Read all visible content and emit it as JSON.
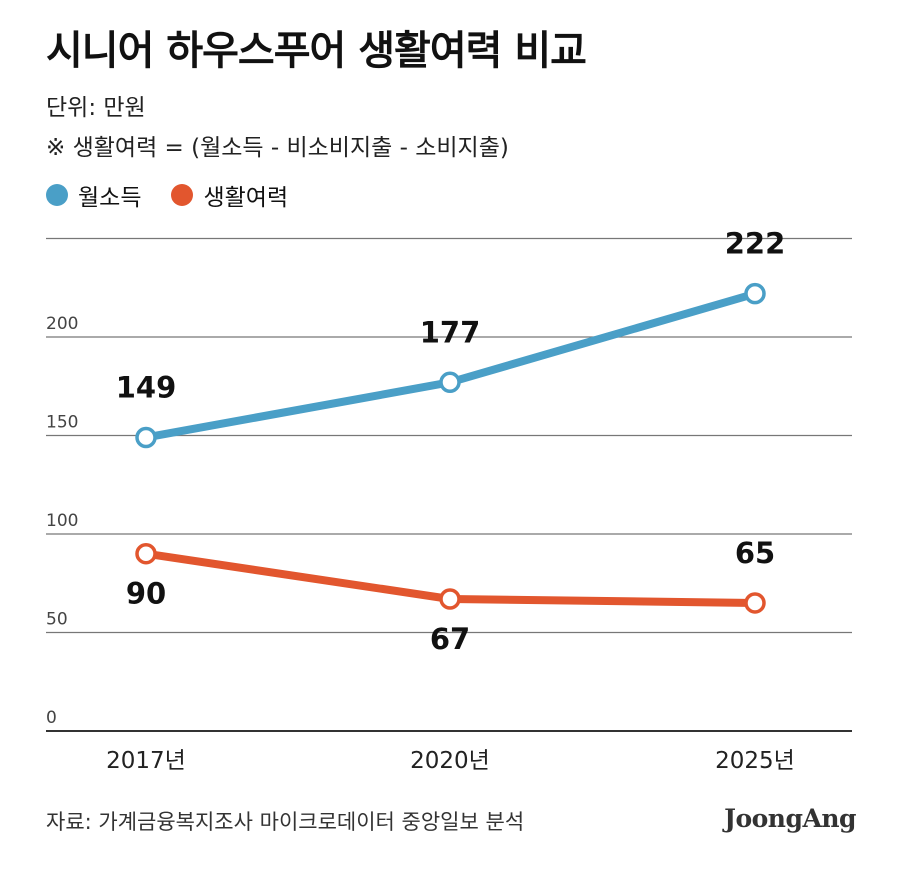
{
  "header": {
    "title": "시니어 하우스푸어 생활여력 비교",
    "unit": "단위: 만원",
    "note": "※ 생활여력 = (월소득 - 비소비지출 - 소비지출)"
  },
  "legend": [
    {
      "label": "월소득",
      "color": "#4a9fc7"
    },
    {
      "label": "생활여력",
      "color": "#e2562e"
    }
  ],
  "chart_data": {
    "type": "line",
    "categories": [
      "2017년",
      "2020년",
      "2025년"
    ],
    "series": [
      {
        "name": "월소득",
        "values": [
          149,
          177,
          222
        ],
        "color": "#4a9fc7"
      },
      {
        "name": "생활여력",
        "values": [
          90,
          67,
          65
        ],
        "color": "#e2562e"
      }
    ],
    "y_ticks": [
      0,
      50,
      100,
      150,
      200
    ],
    "ylim": [
      0,
      250
    ],
    "grid": true,
    "legend_position": "top-left"
  },
  "footer": {
    "source": "자료: 가계금융복지조사 마이크로데이터 중앙일보 분석",
    "brand": "JoongAng"
  }
}
